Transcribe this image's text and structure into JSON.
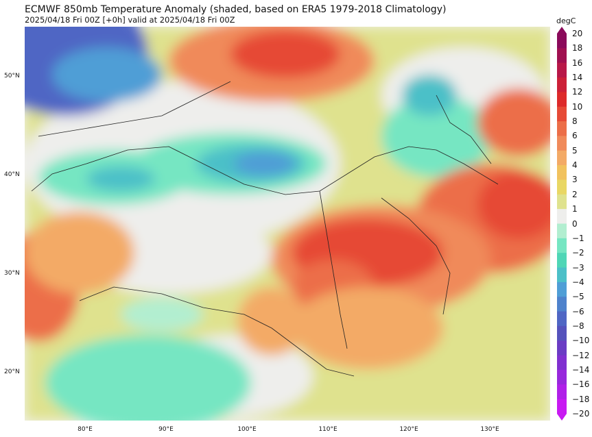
{
  "header": {
    "title": "ECMWF 850mb Temperature Anomaly (shaded, based on ERA5 1979-2018 Climatology)",
    "subtitle": "2025/04/18 Fri 00Z [+0h] valid at 2025/04/18 Fri 00Z"
  },
  "axes": {
    "lat_labels": [
      "50°N",
      "40°N",
      "30°N",
      "20°N"
    ],
    "lon_labels": [
      "80°E",
      "90°E",
      "100°E",
      "110°E",
      "120°E",
      "130°E"
    ]
  },
  "colorbar": {
    "unit": "degC",
    "levels": [
      "20",
      "18",
      "16",
      "14",
      "12",
      "10",
      "8",
      "6",
      "5",
      "4",
      "3",
      "2",
      "1",
      "0",
      "−1",
      "−2",
      "−3",
      "−4",
      "−5",
      "−6",
      "−8",
      "−10",
      "−12",
      "−14",
      "−16",
      "−18",
      "−20"
    ],
    "colors": [
      "#8a0a5a",
      "#a01050",
      "#b81848",
      "#cc2038",
      "#dd2a2a",
      "#e64a36",
      "#ec6e48",
      "#f08a5a",
      "#f3aa66",
      "#f1c25e",
      "#e9d764",
      "#dfe28e",
      "#eeeeec",
      "#b2eed0",
      "#76e6c2",
      "#4fd6b6",
      "#4cc0c8",
      "#4f9ed6",
      "#4e82cc",
      "#4f66c4",
      "#5552bc",
      "#6a3cc4",
      "#8030d0",
      "#9828dc",
      "#b020e8",
      "#c81af2"
    ]
  },
  "map": {
    "region": "East Asia",
    "field": "850mb temperature anomaly"
  }
}
